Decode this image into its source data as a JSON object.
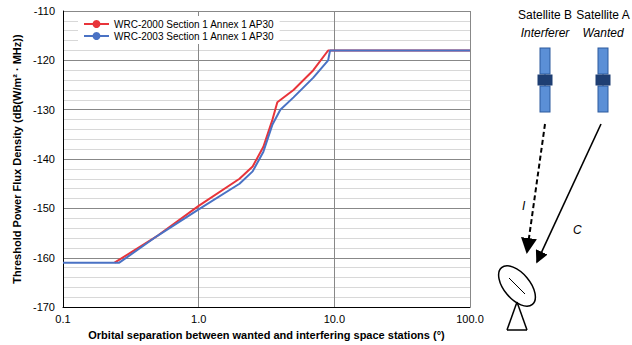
{
  "chart_data": {
    "type": "line",
    "x_label": "Orbital separation between wanted and interfering space stations (°)",
    "y_label": "Threshold Power Flux Density (dB(W/m² · MHz))",
    "log": "x",
    "grid": true,
    "legend": "upper left",
    "xlim": [
      0.1,
      100
    ],
    "xticks": [
      0.1,
      {
        "value": 1,
        "label": "1.0"
      },
      {
        "value": 10,
        "label": "10.0"
      },
      {
        "value": 100,
        "label": "100.0"
      }
    ],
    "ylim": [
      -170,
      -110
    ],
    "yticks": [
      -170,
      -160,
      -150,
      -140,
      -130,
      -120,
      -110
    ],
    "series": [
      {
        "name": "WRC-2000 Section 1 Annex 1 AP30",
        "color": "#e8343a",
        "x": [
          0.24,
          0.5,
          1,
          2,
          2.5,
          3,
          3.5,
          3.8,
          5,
          7,
          9,
          100
        ],
        "values": [
          -161,
          -155.5,
          -149.5,
          -144,
          -141.5,
          -137.5,
          -132,
          -128.5,
          -126,
          -122,
          -118,
          -118
        ]
      },
      {
        "name": "WRC-2003 Section 1 Annex 1 AP30",
        "color": "#4a72c4",
        "x": [
          0.1,
          0.26,
          0.5,
          1,
          2,
          2.5,
          3,
          3.5,
          4,
          5,
          7,
          9,
          9.3,
          100
        ],
        "values": [
          -161,
          -161,
          -155.5,
          -150.2,
          -145,
          -142.5,
          -138.5,
          -133,
          -130,
          -127.5,
          -123.5,
          -120,
          -118,
          -118
        ]
      }
    ]
  },
  "diagram": {
    "satellites": [
      {
        "label": "Satellite B",
        "role": "Interferer"
      },
      {
        "label": "Satellite A",
        "role": "Wanted"
      }
    ],
    "signals": [
      {
        "label": "I",
        "from": "Satellite B"
      },
      {
        "label": "C",
        "from": "Satellite A"
      }
    ]
  }
}
